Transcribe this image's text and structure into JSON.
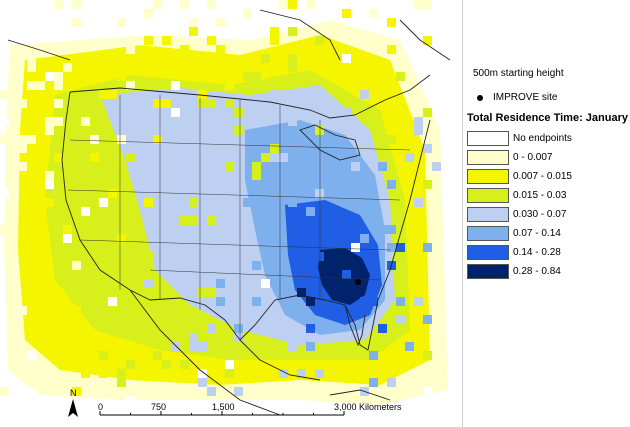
{
  "legend": {
    "starting_height": "500m starting height",
    "site_label": "IMPROVE site",
    "title": "Total Residence Time: January",
    "items": [
      {
        "label": "No endpoints",
        "color": "#ffffff"
      },
      {
        "label": "0 - 0.007",
        "color": "#ffffcc"
      },
      {
        "label": "0.007 - 0.015",
        "color": "#f5f500"
      },
      {
        "label": "0.015 - 0.03",
        "color": "#d7ef1a"
      },
      {
        "label": "0.030 - 0.07",
        "color": "#bdd0f2"
      },
      {
        "label": "0.07 - 0.14",
        "color": "#7fb0ee"
      },
      {
        "label": "0.14 - 0.28",
        "color": "#1f5ee5"
      },
      {
        "label": "0.28 - 0.84",
        "color": "#00236b"
      }
    ]
  },
  "north_label": "N",
  "scale": {
    "labels": [
      "0",
      "750",
      "1,500",
      "3,000 Kilometers"
    ],
    "stops": [
      0,
      750,
      1500,
      3000
    ]
  },
  "colors": {
    "no_endpoints": "#ffffff",
    "boundary": "#000000",
    "coast": "#222222"
  }
}
